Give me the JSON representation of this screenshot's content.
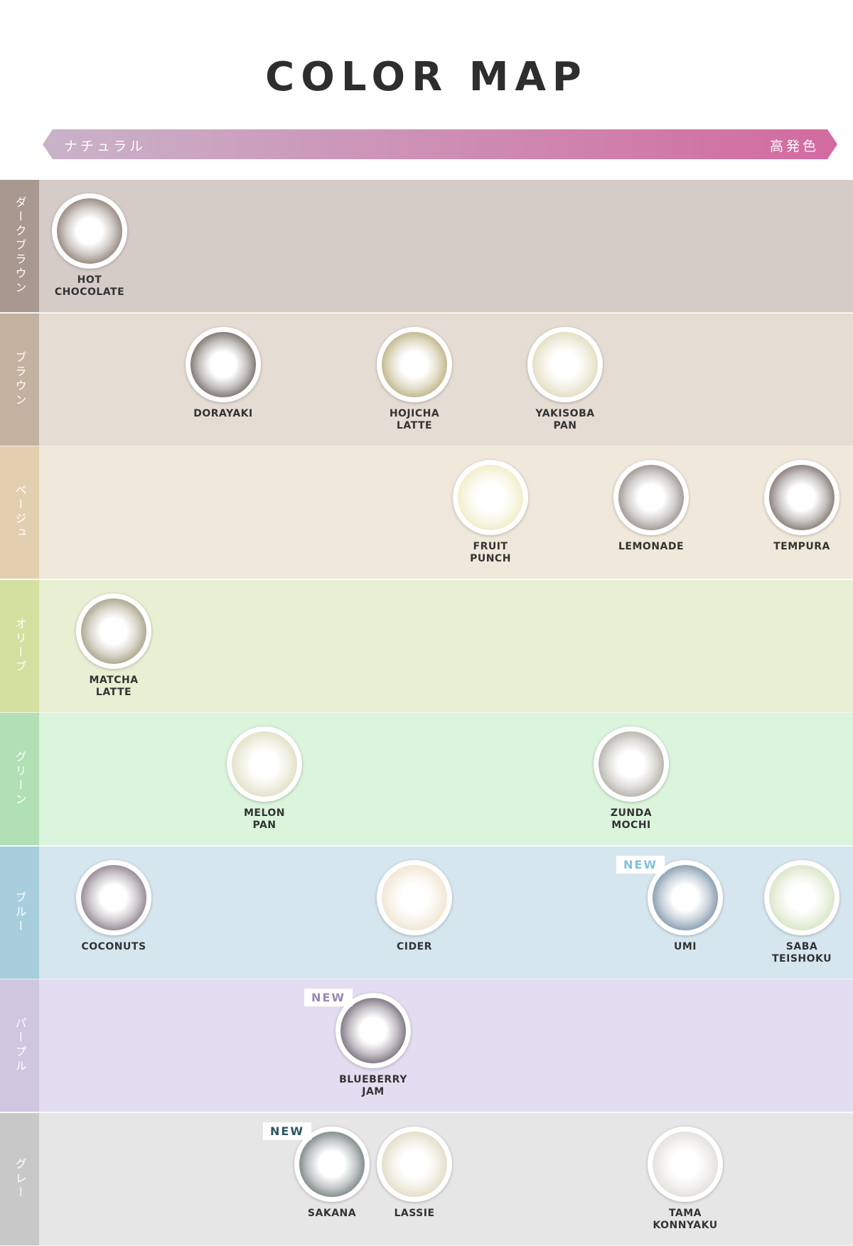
{
  "title": "COLOR MAP",
  "scale": {
    "left": "ナチュラル",
    "right": "高発色",
    "colors": [
      "#c9b3c9",
      "#d26aa0"
    ]
  },
  "new_label": "NEW",
  "rows": [
    {
      "category": "ダークブラウン",
      "side": "#a89890",
      "bg": "#d5ccc8",
      "lenses": [
        {
          "name": "HOT\nCHOCOLATE",
          "color": "#6b5a4c"
        }
      ]
    },
    {
      "category": "ブラウン",
      "side": "#c4b2a0",
      "bg": "#e5ddd3",
      "lenses": [
        {
          "name": "DORAYAKI",
          "color": "#4a4038"
        },
        {
          "name": "HOJICHA\nLATTE",
          "color": "#a89a5c"
        },
        {
          "name": "YAKISOBA\nPAN",
          "color": "#d8d0a8"
        }
      ]
    },
    {
      "category": "ベージュ",
      "side": "#e2cfb0",
      "bg": "#f0e8da",
      "lenses": [
        {
          "name": "FRUIT\nPUNCH",
          "color": "#ece6b4"
        },
        {
          "name": "LEMONADE",
          "color": "#7a7068"
        },
        {
          "name": "TEMPURA",
          "color": "#5a4a44"
        }
      ]
    },
    {
      "category": "オリーブ",
      "side": "#d4e0a0",
      "bg": "#e8efd2",
      "lenses": [
        {
          "name": "MATCHA\nLATTE",
          "color": "#8a8260"
        }
      ]
    },
    {
      "category": "グリーン",
      "side": "#b0e0b4",
      "bg": "#dbf5dd",
      "lenses": [
        {
          "name": "MELON\nPAN",
          "color": "#d6d4b0"
        },
        {
          "name": "ZUNDA\nMOCHI",
          "color": "#9a968a"
        }
      ]
    },
    {
      "category": "ブルー",
      "side": "#a8cddd",
      "bg": "#d6e6ee",
      "lenses": [
        {
          "name": "COCONUTS",
          "color": "#6a5a66"
        },
        {
          "name": "CIDER",
          "color": "#eadcc0"
        },
        {
          "name": "UMI",
          "color": "#5a7690",
          "new": true,
          "badge_color": "#7fc1e0"
        },
        {
          "name": "SABA\nTEISHOKU",
          "color": "#c8dcb0"
        }
      ]
    },
    {
      "category": "パープル",
      "side": "#cfc6e0",
      "bg": "#e2ddf0",
      "lenses": [
        {
          "name": "BLUEBERRY\nJAM",
          "color": "#4a3e50",
          "new": true,
          "badge_color": "#9a88b0"
        }
      ]
    },
    {
      "category": "グレー",
      "side": "#c8c8c8",
      "bg": "#e6e6e6",
      "lenses": [
        {
          "name": "SAKANA",
          "color": "#4a5a5a",
          "new": true,
          "badge_color": "#2e5560"
        },
        {
          "name": "LASSIE",
          "color": "#d8d0b0"
        },
        {
          "name": "TAMA\nKONNYAKU",
          "color": "#d8d4cc"
        }
      ]
    }
  ]
}
